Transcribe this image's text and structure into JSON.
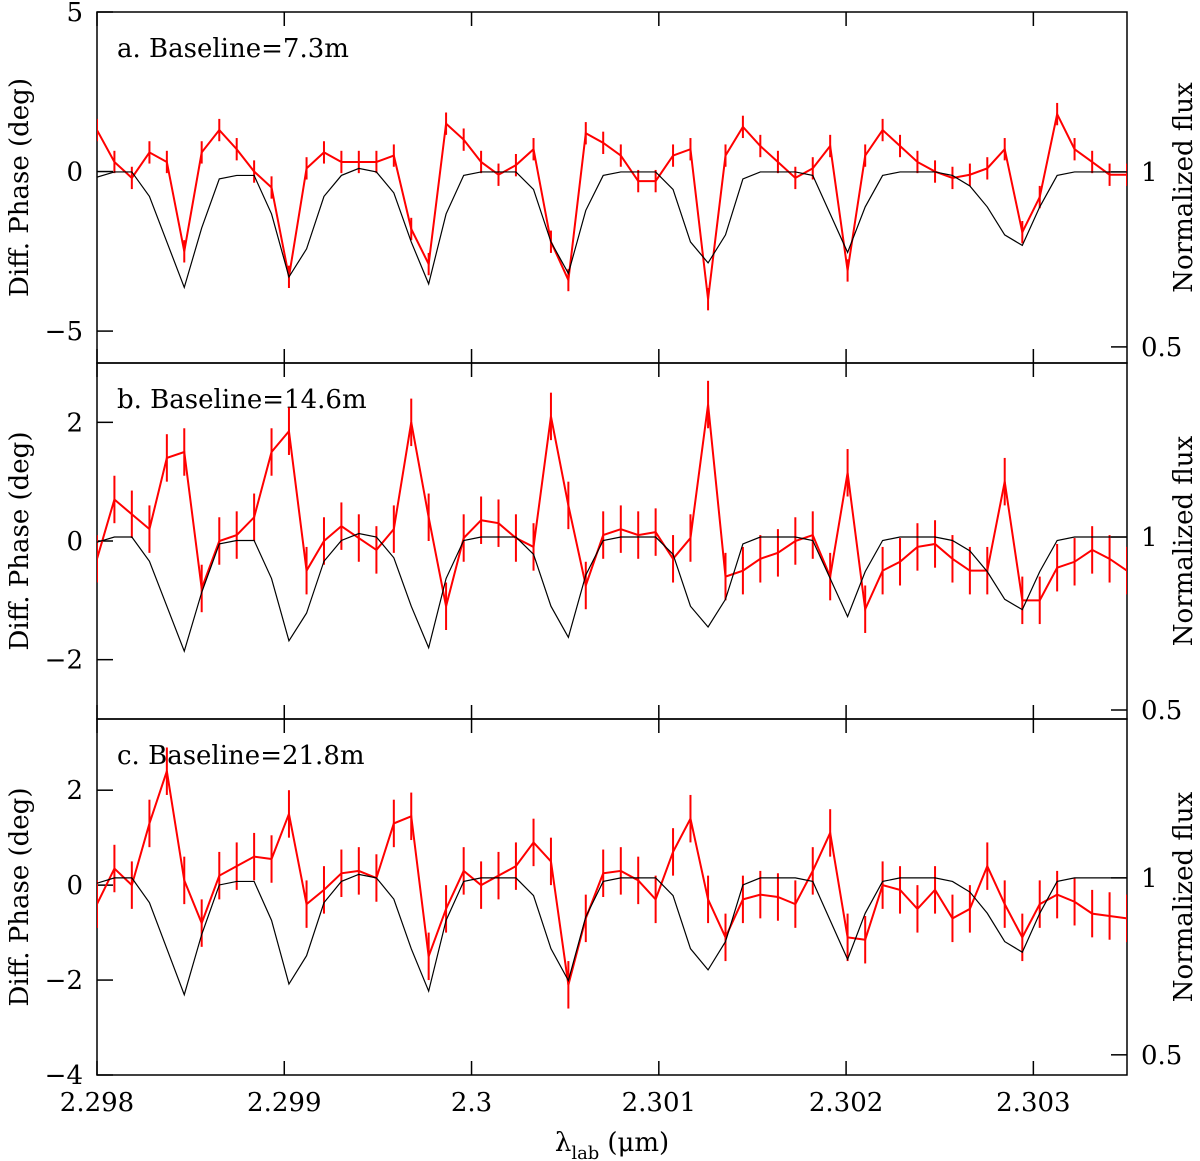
{
  "chart_data": [
    {
      "type": "line",
      "title": "a. Baseline=7.3m",
      "ylabel": "Diff. Phase (deg)",
      "y2label": "Normalized flux",
      "xlim": [
        2.298,
        2.3035
      ],
      "xticks": [
        2.298,
        2.299,
        2.3,
        2.301,
        2.302,
        2.303
      ],
      "ylim": [
        -6,
        5
      ],
      "yticks": [
        {
          "value": -5,
          "label": "−5"
        },
        0,
        5
      ],
      "y2lim": [
        0.454,
        1.457
      ],
      "y2ticks": [
        0.5,
        1
      ],
      "x": [
        2.298,
        2.298093,
        2.298186,
        2.29828,
        2.298373,
        2.298466,
        2.298559,
        2.298653,
        2.298746,
        2.298839,
        2.298932,
        2.299025,
        2.299119,
        2.299212,
        2.299305,
        2.299398,
        2.299492,
        2.299585,
        2.299678,
        2.299771,
        2.299864,
        2.299958,
        2.300051,
        2.300144,
        2.300237,
        2.300331,
        2.300424,
        2.300517,
        2.30061,
        2.300703,
        2.300797,
        2.30089,
        2.300983,
        2.301076,
        2.301169,
        2.301263,
        2.301356,
        2.301449,
        2.301542,
        2.301636,
        2.301729,
        2.301822,
        2.301915,
        2.302008,
        2.302102,
        2.302195,
        2.302288,
        2.302381,
        2.302475,
        2.302568,
        2.302661,
        2.302754,
        2.302847,
        2.302941,
        2.303034,
        2.303127,
        2.30322,
        2.303314,
        2.303407,
        2.3035
      ],
      "series": [
        {
          "color": "#ff0000",
          "axis": "y",
          "error": 0.35,
          "values": [
            1.3,
            0.3,
            -0.2,
            0.6,
            0.3,
            -2.5,
            0.6,
            1.3,
            0.7,
            0.0,
            -0.5,
            -3.3,
            0.1,
            0.6,
            0.3,
            0.3,
            0.3,
            0.5,
            -1.8,
            -2.9,
            1.5,
            1.0,
            0.3,
            -0.1,
            0.2,
            0.7,
            -2.2,
            -3.4,
            1.2,
            0.9,
            0.5,
            -0.3,
            -0.3,
            0.5,
            0.7,
            -4.0,
            0.5,
            1.4,
            0.8,
            0.3,
            -0.2,
            0.1,
            0.8,
            -3.1,
            0.5,
            1.3,
            0.8,
            0.3,
            0.0,
            -0.2,
            -0.1,
            0.1,
            0.7,
            -1.9,
            -0.8,
            1.8,
            0.7,
            0.3,
            -0.1,
            -0.1
          ]
        },
        {
          "color": "#000000",
          "axis": "y2",
          "values": [
            0.985,
            1.0,
            1.0,
            0.93,
            0.8,
            0.67,
            0.84,
            0.98,
            0.99,
            0.99,
            0.88,
            0.7,
            0.78,
            0.93,
            0.99,
            1.01,
            1.0,
            0.94,
            0.8,
            0.68,
            0.88,
            0.99,
            1.0,
            1.0,
            1.0,
            0.95,
            0.8,
            0.71,
            0.89,
            0.99,
            1.0,
            1.0,
            1.0,
            0.95,
            0.8,
            0.74,
            0.82,
            0.98,
            1.0,
            1.0,
            1.0,
            0.99,
            0.88,
            0.77,
            0.9,
            0.99,
            1.0,
            1.0,
            1.0,
            0.99,
            0.96,
            0.9,
            0.82,
            0.79,
            0.9,
            0.99,
            1.0,
            1.0,
            1.0,
            1.0
          ]
        }
      ]
    },
    {
      "type": "line",
      "title": "b. Baseline=14.6m",
      "ylabel": "Diff. Phase (deg)",
      "y2label": "Normalized flux",
      "xlim": [
        2.298,
        2.3035
      ],
      "xticks": [
        2.298,
        2.299,
        2.3,
        2.301,
        2.302,
        2.303
      ],
      "ylim": [
        -3,
        3
      ],
      "yticks": [
        {
          "value": -2,
          "label": "−2"
        },
        0,
        2
      ],
      "y2lim": [
        0.474,
        1.503
      ],
      "y2ticks": [
        0.5,
        1
      ],
      "x": [
        2.298,
        2.298093,
        2.298186,
        2.29828,
        2.298373,
        2.298466,
        2.298559,
        2.298653,
        2.298746,
        2.298839,
        2.298932,
        2.299025,
        2.299119,
        2.299212,
        2.299305,
        2.299398,
        2.299492,
        2.299585,
        2.299678,
        2.299771,
        2.299864,
        2.299958,
        2.300051,
        2.300144,
        2.300237,
        2.300331,
        2.300424,
        2.300517,
        2.30061,
        2.300703,
        2.300797,
        2.30089,
        2.300983,
        2.301076,
        2.301169,
        2.301263,
        2.301356,
        2.301449,
        2.301542,
        2.301636,
        2.301729,
        2.301822,
        2.301915,
        2.302008,
        2.302102,
        2.302195,
        2.302288,
        2.302381,
        2.302475,
        2.302568,
        2.302661,
        2.302754,
        2.302847,
        2.302941,
        2.303034,
        2.303127,
        2.30322,
        2.303314,
        2.303407,
        2.3035
      ],
      "series": [
        {
          "color": "#ff0000",
          "axis": "y",
          "error": 0.4,
          "values": [
            -0.3,
            0.7,
            0.45,
            0.2,
            1.4,
            1.5,
            -0.8,
            0.0,
            0.1,
            0.4,
            1.5,
            1.85,
            -0.5,
            0.0,
            0.25,
            0.05,
            -0.15,
            0.2,
            2.0,
            0.4,
            -1.1,
            0.05,
            0.35,
            0.3,
            0.05,
            -0.1,
            2.1,
            0.6,
            -0.75,
            0.1,
            0.2,
            0.1,
            0.15,
            -0.3,
            0.05,
            2.3,
            -0.6,
            -0.5,
            -0.3,
            -0.2,
            0.0,
            0.1,
            -0.6,
            1.15,
            -1.15,
            -0.5,
            -0.35,
            -0.1,
            -0.05,
            -0.3,
            -0.5,
            -0.5,
            1.0,
            -1.0,
            -1.0,
            -0.45,
            -0.35,
            -0.15,
            -0.3,
            -0.5
          ]
        },
        {
          "color": "#000000",
          "axis": "y2",
          "values": [
            0.985,
            1.0,
            1.0,
            0.93,
            0.8,
            0.67,
            0.84,
            0.98,
            0.99,
            0.99,
            0.88,
            0.7,
            0.78,
            0.93,
            0.99,
            1.01,
            1.0,
            0.94,
            0.8,
            0.68,
            0.88,
            0.99,
            1.0,
            1.0,
            1.0,
            0.95,
            0.8,
            0.71,
            0.89,
            0.99,
            1.0,
            1.0,
            1.0,
            0.95,
            0.8,
            0.74,
            0.82,
            0.98,
            1.0,
            1.0,
            1.0,
            0.99,
            0.88,
            0.77,
            0.9,
            0.99,
            1.0,
            1.0,
            1.0,
            0.99,
            0.96,
            0.9,
            0.82,
            0.79,
            0.9,
            0.99,
            1.0,
            1.0,
            1.0,
            1.0
          ]
        }
      ]
    },
    {
      "type": "line",
      "title": "c. Baseline=21.8m",
      "ylabel": "Diff. Phase (deg)",
      "y2label": "Normalized flux",
      "xlabel": "λ",
      "xlabel_sub": "lab",
      "xlabel_unit": "(μm)",
      "xlim": [
        2.298,
        2.3035
      ],
      "xticks": [
        2.298,
        2.299,
        2.3,
        2.301,
        2.302,
        2.303
      ],
      "ylim": [
        -4,
        3.5
      ],
      "yticks": [
        {
          "value": -4,
          "label": "−4"
        },
        {
          "value": -2,
          "label": "−2"
        },
        0,
        2
      ],
      "y2lim": [
        0.443,
        1.449
      ],
      "y2ticks": [
        0.5,
        1
      ],
      "x": [
        2.298,
        2.298093,
        2.298186,
        2.29828,
        2.298373,
        2.298466,
        2.298559,
        2.298653,
        2.298746,
        2.298839,
        2.298932,
        2.299025,
        2.299119,
        2.299212,
        2.299305,
        2.299398,
        2.299492,
        2.299585,
        2.299678,
        2.299771,
        2.299864,
        2.299958,
        2.300051,
        2.300144,
        2.300237,
        2.300331,
        2.300424,
        2.300517,
        2.30061,
        2.300703,
        2.300797,
        2.30089,
        2.300983,
        2.301076,
        2.301169,
        2.301263,
        2.301356,
        2.301449,
        2.301542,
        2.301636,
        2.301729,
        2.301822,
        2.301915,
        2.302008,
        2.302102,
        2.302195,
        2.302288,
        2.302381,
        2.302475,
        2.302568,
        2.302661,
        2.302754,
        2.302847,
        2.302941,
        2.303034,
        2.303127,
        2.30322,
        2.303314,
        2.303407,
        2.3035
      ],
      "series": [
        {
          "color": "#ff0000",
          "axis": "y",
          "error": 0.5,
          "values": [
            -0.4,
            0.35,
            0.0,
            1.3,
            2.4,
            0.1,
            -0.8,
            0.2,
            0.4,
            0.6,
            0.55,
            1.5,
            -0.4,
            -0.1,
            0.25,
            0.3,
            0.15,
            1.3,
            1.45,
            -1.5,
            -0.5,
            0.3,
            0.0,
            0.2,
            0.4,
            0.9,
            0.5,
            -2.1,
            -0.7,
            0.25,
            0.3,
            0.1,
            -0.3,
            0.7,
            1.4,
            -0.3,
            -1.1,
            -0.3,
            -0.2,
            -0.25,
            -0.4,
            0.3,
            1.1,
            -1.1,
            -1.15,
            0.0,
            -0.1,
            -0.5,
            -0.1,
            -0.7,
            -0.5,
            0.4,
            -0.4,
            -1.1,
            -0.4,
            -0.2,
            -0.35,
            -0.6,
            -0.65,
            -0.7
          ]
        },
        {
          "color": "#000000",
          "axis": "y2",
          "values": [
            0.985,
            1.0,
            1.0,
            0.93,
            0.8,
            0.67,
            0.84,
            0.98,
            0.99,
            0.99,
            0.88,
            0.7,
            0.78,
            0.93,
            0.99,
            1.01,
            1.0,
            0.94,
            0.8,
            0.68,
            0.88,
            0.99,
            1.0,
            1.0,
            1.0,
            0.95,
            0.8,
            0.71,
            0.89,
            0.99,
            1.0,
            1.0,
            1.0,
            0.95,
            0.8,
            0.74,
            0.82,
            0.98,
            1.0,
            1.0,
            1.0,
            0.99,
            0.88,
            0.77,
            0.9,
            0.99,
            1.0,
            1.0,
            1.0,
            0.99,
            0.96,
            0.9,
            0.82,
            0.79,
            0.9,
            0.99,
            1.0,
            1.0,
            1.0,
            1.0
          ]
        }
      ]
    }
  ]
}
